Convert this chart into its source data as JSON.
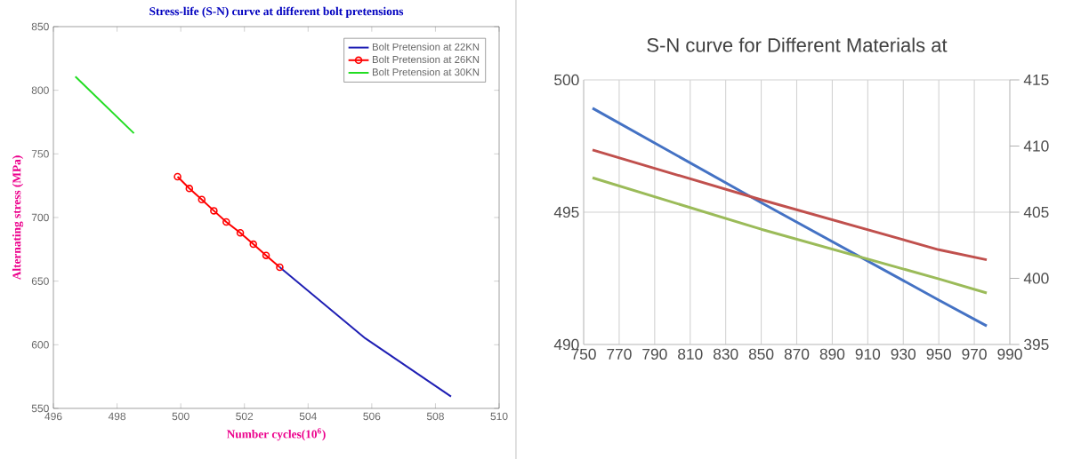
{
  "chart_data": [
    {
      "type": "line",
      "title": "Stress-life (S-N) curve at different bolt pretensions",
      "xlabel": "Number cycles(10$^{6}$)",
      "ylabel": "Alternating stress (MPa)",
      "xlim": [
        496,
        510
      ],
      "ylim": [
        550,
        850
      ],
      "xticks": [
        496,
        498,
        500,
        502,
        504,
        506,
        508,
        510
      ],
      "yticks": [
        550,
        600,
        650,
        700,
        750,
        800,
        850
      ],
      "legend": "top right",
      "line_style": "solid",
      "series": [
        {
          "name": "Bolt Pretension at 22KN",
          "color": "#1f1fb4",
          "marker": "none",
          "x": [
            503.11,
            505.8,
            508.49
          ],
          "values": [
            660.9,
            605,
            559.3
          ]
        },
        {
          "name": "Bolt Pretension at 26KN",
          "color": "#ff0000",
          "marker": "circle",
          "x": [
            499.9,
            500.27,
            500.66,
            501.04,
            501.43,
            501.87,
            502.28,
            502.68,
            503.11
          ],
          "values": [
            732.1,
            722.8,
            714.1,
            705.3,
            696.5,
            688.0,
            679.0,
            670.2,
            660.9
          ]
        },
        {
          "name": "Bolt Pretension at 30KN",
          "color": "#22dd22",
          "marker": "none",
          "x": [
            496.69,
            498.53
          ],
          "values": [
            810.8,
            766.2
          ]
        }
      ]
    },
    {
      "type": "line",
      "title": "S-N curve for Different Materials at",
      "xlim": [
        750,
        990
      ],
      "ylim": [
        490,
        500
      ],
      "y2lim": [
        395,
        415
      ],
      "xticks": [
        750,
        770,
        790,
        810,
        830,
        850,
        870,
        890,
        910,
        930,
        950,
        970,
        990
      ],
      "yticks": [
        490,
        495,
        500
      ],
      "y2ticks": [
        395,
        400,
        405,
        410,
        415
      ],
      "grid": true,
      "marker": "none",
      "line_style": "solid",
      "series": [
        {
          "color": "#4472c4",
          "x": [
            755,
            850,
            950,
            977
          ],
          "values": [
            498.93,
            495.36,
            491.68,
            490.7
          ]
        },
        {
          "color": "#c0504d",
          "x": [
            755,
            850,
            950,
            977
          ],
          "values": [
            497.35,
            495.47,
            493.58,
            493.2
          ]
        },
        {
          "color": "#9bbb59",
          "axis": "y2",
          "x": [
            755,
            850,
            950,
            977
          ],
          "values": [
            407.6,
            403.71,
            399.96,
            398.89
          ]
        }
      ]
    }
  ]
}
